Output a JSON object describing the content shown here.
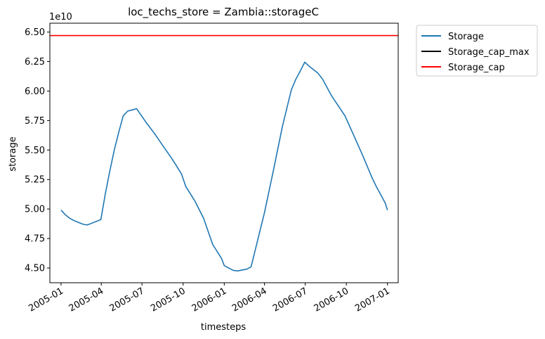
{
  "chart_data": {
    "type": "line",
    "title": "loc_techs_store = Zambia::storageC",
    "xlabel": "timesteps",
    "ylabel": "storage",
    "y_offset_label": "1e10",
    "y_scale": 10000000000.0,
    "xlim": [
      "2004-12-07",
      "2007-01-25"
    ],
    "ylim": [
      4.375,
      6.575
    ],
    "x_ticks": [
      "2005-01",
      "2005-04",
      "2005-07",
      "2005-10",
      "2006-01",
      "2006-04",
      "2006-07",
      "2006-10",
      "2007-01"
    ],
    "x_tick_dates": [
      "2005-01-01",
      "2005-04-01",
      "2005-07-01",
      "2005-10-01",
      "2006-01-01",
      "2006-04-01",
      "2006-07-01",
      "2006-10-01",
      "2007-01-01"
    ],
    "y_ticks": [
      4.5,
      4.75,
      5.0,
      5.25,
      5.5,
      5.75,
      6.0,
      6.25,
      6.5
    ],
    "y_tick_labels": [
      "4.50",
      "4.75",
      "5.00",
      "5.25",
      "5.50",
      "5.75",
      "6.00",
      "6.25",
      "6.50"
    ],
    "grid": false,
    "legend_position": "outside-top-right",
    "series": [
      {
        "name": "Storage",
        "color": "#1f77b4",
        "points": [
          [
            "2005-01-01",
            4.99
          ],
          [
            "2005-01-11",
            4.95
          ],
          [
            "2005-01-21",
            4.92
          ],
          [
            "2005-01-31",
            4.9
          ],
          [
            "2005-02-10",
            4.885
          ],
          [
            "2005-02-20",
            4.87
          ],
          [
            "2005-03-01",
            4.865
          ],
          [
            "2005-03-31",
            4.91
          ],
          [
            "2005-04-10",
            5.13
          ],
          [
            "2005-04-20",
            5.32
          ],
          [
            "2005-04-30",
            5.5
          ],
          [
            "2005-05-10",
            5.65
          ],
          [
            "2005-05-20",
            5.79
          ],
          [
            "2005-05-30",
            5.83
          ],
          [
            "2005-06-09",
            5.84
          ],
          [
            "2005-06-19",
            5.85
          ],
          [
            "2005-07-09",
            5.74
          ],
          [
            "2005-07-29",
            5.64
          ],
          [
            "2005-08-18",
            5.53
          ],
          [
            "2005-09-07",
            5.42
          ],
          [
            "2005-09-27",
            5.3
          ],
          [
            "2005-10-07",
            5.19
          ],
          [
            "2005-10-27",
            5.07
          ],
          [
            "2005-11-16",
            4.92
          ],
          [
            "2005-12-06",
            4.7
          ],
          [
            "2005-12-26",
            4.58
          ],
          [
            "2006-01-01",
            4.52
          ],
          [
            "2006-01-21",
            4.48
          ],
          [
            "2006-01-31",
            4.475
          ],
          [
            "2006-02-20",
            4.49
          ],
          [
            "2006-03-02",
            4.51
          ],
          [
            "2006-04-01",
            4.97
          ],
          [
            "2006-04-21",
            5.33
          ],
          [
            "2006-05-11",
            5.7
          ],
          [
            "2006-05-31",
            6.01
          ],
          [
            "2006-06-10",
            6.1
          ],
          [
            "2006-06-20",
            6.17
          ],
          [
            "2006-06-30",
            6.245
          ],
          [
            "2006-07-10",
            6.21
          ],
          [
            "2006-07-20",
            6.18
          ],
          [
            "2006-07-30",
            6.15
          ],
          [
            "2006-08-09",
            6.1
          ],
          [
            "2006-08-29",
            5.96
          ],
          [
            "2006-09-28",
            5.79
          ],
          [
            "2006-10-18",
            5.62
          ],
          [
            "2006-11-07",
            5.45
          ],
          [
            "2006-11-27",
            5.27
          ],
          [
            "2006-12-07",
            5.19
          ],
          [
            "2006-12-17",
            5.12
          ],
          [
            "2006-12-27",
            5.05
          ],
          [
            "2007-01-01",
            4.99
          ]
        ]
      },
      {
        "name": "Storage_cap_max",
        "color": "#000000",
        "points": []
      },
      {
        "name": "Storage_cap",
        "color": "#ff0000",
        "horizontal_value": 6.47
      }
    ]
  }
}
